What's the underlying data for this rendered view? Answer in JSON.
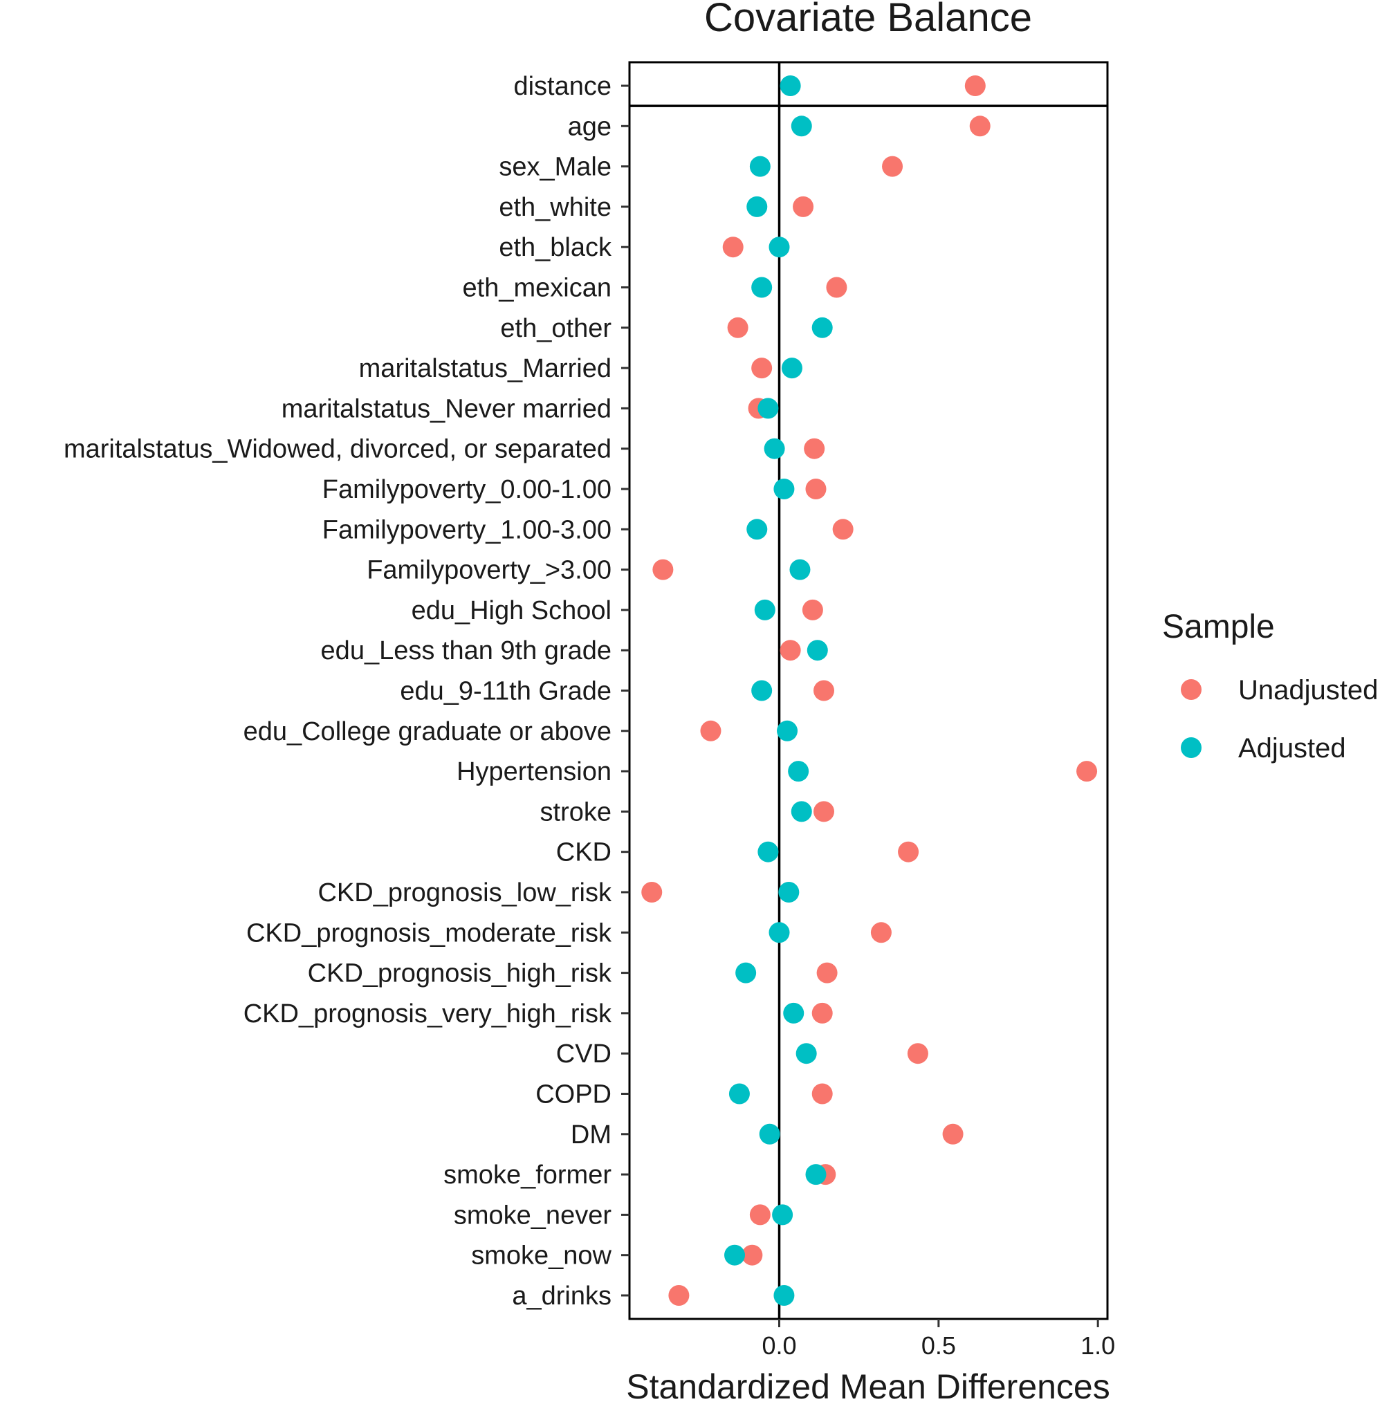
{
  "chart_data": {
    "type": "scatter",
    "title": "Covariate Balance",
    "xlabel": "Standardized Mean Differences",
    "ylabel": "",
    "xlim": [
      -0.47,
      1.03
    ],
    "xticks": [
      0.0,
      0.5,
      1.0
    ],
    "xtick_labels": [
      "0.0",
      "0.5",
      "1.0"
    ],
    "reference_line_x": 0,
    "grid": false,
    "legend": {
      "title": "Sample",
      "position": "right",
      "entries": [
        "Unadjusted",
        "Adjusted"
      ]
    },
    "colors": {
      "Unadjusted": "#F8766D",
      "Adjusted": "#00BFC4"
    },
    "categories": [
      "distance",
      "age",
      "sex_Male",
      "eth_white",
      "eth_black",
      "eth_mexican",
      "eth_other",
      "maritalstatus_Married",
      "maritalstatus_Never married",
      "maritalstatus_Widowed, divorced, or separated",
      "Familypoverty_0.00-1.00",
      "Familypoverty_1.00-3.00",
      "Familypoverty_>3.00",
      "edu_High School",
      "edu_Less than 9th grade",
      "edu_9-11th Grade",
      "edu_College graduate or above",
      "Hypertension",
      "stroke",
      "CKD",
      "CKD_prognosis_low_risk",
      "CKD_prognosis_moderate_risk",
      "CKD_prognosis_high_risk",
      "CKD_prognosis_very_high_risk",
      "CVD",
      "COPD",
      "DM",
      "smoke_former",
      "smoke_never",
      "smoke_now",
      "a_drinks"
    ],
    "series": [
      {
        "name": "Unadjusted",
        "values": [
          0.615,
          0.63,
          0.355,
          0.075,
          -0.145,
          0.18,
          -0.13,
          -0.055,
          -0.065,
          0.11,
          0.115,
          0.2,
          -0.365,
          0.105,
          0.035,
          0.14,
          -0.215,
          0.965,
          0.14,
          0.405,
          -0.4,
          0.32,
          0.15,
          0.135,
          0.435,
          0.135,
          0.545,
          0.145,
          -0.06,
          -0.085,
          -0.315
        ]
      },
      {
        "name": "Adjusted",
        "values": [
          0.035,
          0.07,
          -0.06,
          -0.07,
          0.0,
          -0.055,
          0.135,
          0.04,
          -0.035,
          -0.015,
          0.015,
          -0.07,
          0.065,
          -0.045,
          0.12,
          -0.055,
          0.025,
          0.06,
          0.07,
          -0.035,
          0.03,
          0.0,
          -0.105,
          0.045,
          0.085,
          -0.125,
          -0.03,
          0.115,
          0.01,
          -0.14,
          0.015
        ]
      }
    ]
  }
}
